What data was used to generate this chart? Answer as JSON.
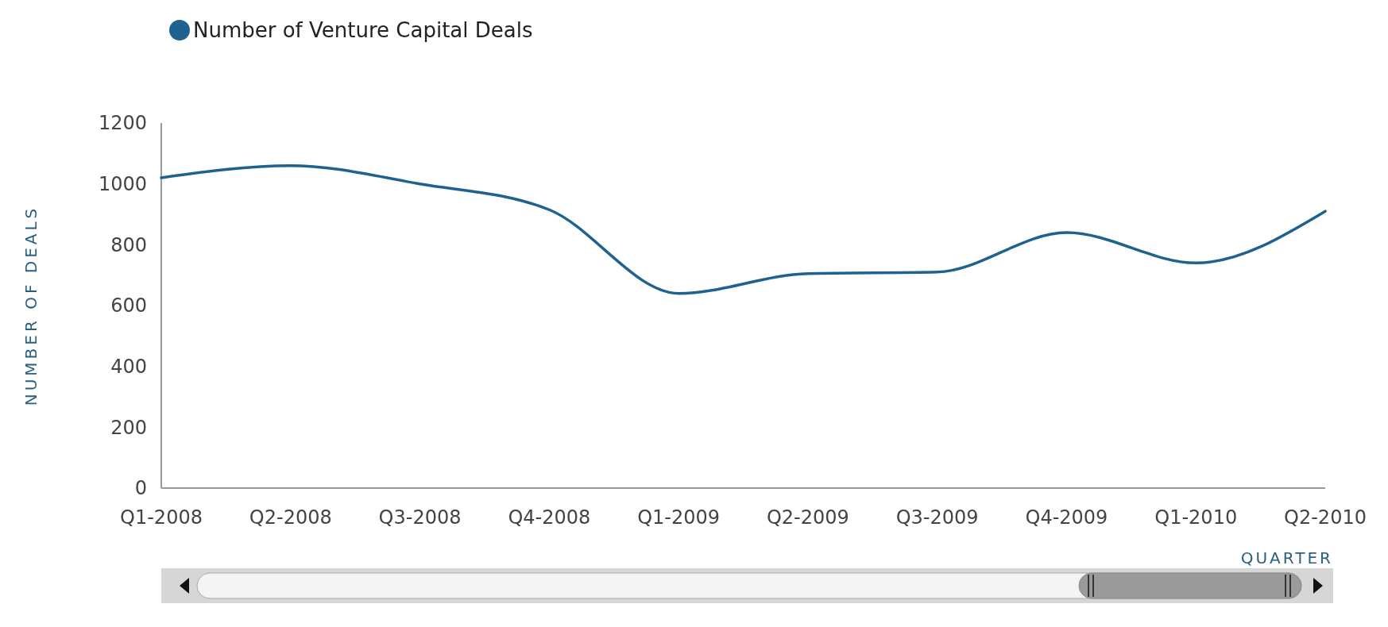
{
  "chart_data": {
    "type": "line",
    "xlabel": "QUARTER",
    "ylabel": "NUMBER OF DEALS",
    "categories": [
      "Q1-2008",
      "Q2-2008",
      "Q3-2008",
      "Q4-2008",
      "Q1-2009",
      "Q2-2009",
      "Q3-2009",
      "Q4-2009",
      "Q1-2010",
      "Q2-2010"
    ],
    "series": [
      {
        "name": "Number of Venture Capital Deals",
        "color": "#1f628f",
        "values": [
          1020,
          1060,
          1000,
          915,
          640,
          705,
          710,
          840,
          740,
          910
        ]
      }
    ],
    "ylim": [
      0,
      1200
    ],
    "yticks": [
      0,
      200,
      400,
      600,
      800,
      1000,
      1200
    ],
    "grid": false,
    "legend": "top left",
    "marker": "none",
    "line_style": "solid"
  }
}
